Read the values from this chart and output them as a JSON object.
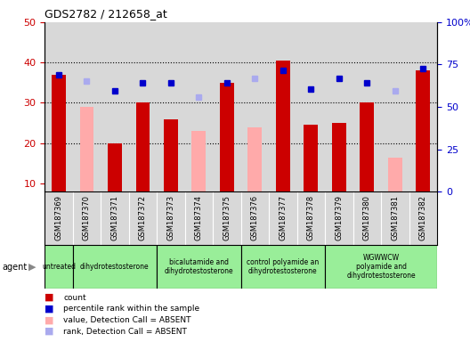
{
  "title": "GDS2782 / 212658_at",
  "samples": [
    "GSM187369",
    "GSM187370",
    "GSM187371",
    "GSM187372",
    "GSM187373",
    "GSM187374",
    "GSM187375",
    "GSM187376",
    "GSM187377",
    "GSM187378",
    "GSM187379",
    "GSM187380",
    "GSM187381",
    "GSM187382"
  ],
  "count_red": [
    37.0,
    null,
    20.0,
    30.0,
    26.0,
    null,
    35.0,
    null,
    40.5,
    24.5,
    25.0,
    30.0,
    null,
    38.0
  ],
  "value_pink": [
    null,
    29.0,
    null,
    null,
    null,
    23.0,
    null,
    24.0,
    null,
    null,
    null,
    null,
    16.5,
    null
  ],
  "rank_blue": [
    37.0,
    null,
    33.0,
    35.0,
    35.0,
    null,
    35.0,
    null,
    38.0,
    33.5,
    36.0,
    35.0,
    null,
    38.5
  ],
  "rank_lightblue": [
    null,
    35.5,
    null,
    null,
    null,
    31.5,
    null,
    36.0,
    null,
    null,
    null,
    null,
    33.0,
    null
  ],
  "agent_groups": [
    {
      "label": "untreated",
      "start": 0,
      "end": 1
    },
    {
      "label": "dihydrotestosterone",
      "start": 1,
      "end": 4
    },
    {
      "label": "bicalutamide and\ndihydrotestosterone",
      "start": 4,
      "end": 7
    },
    {
      "label": "control polyamide an\ndihydrotestosterone",
      "start": 7,
      "end": 10
    },
    {
      "label": "WGWWCW\npolyamide and\ndihydrotestosterone",
      "start": 10,
      "end": 14
    }
  ],
  "ylim_left": [
    8,
    50
  ],
  "ylim_right": [
    0,
    100
  ],
  "yticks_left": [
    10,
    20,
    30,
    40,
    50
  ],
  "yticks_right": [
    0,
    25,
    50,
    75,
    100
  ],
  "yticklabels_right": [
    "0",
    "25",
    "50",
    "75",
    "100%"
  ],
  "bg_color": "#d8d8d8",
  "agent_color": "#99ee99",
  "red_color": "#cc0000",
  "pink_color": "#ffaaaa",
  "blue_color": "#0000cc",
  "lightblue_color": "#aaaaee"
}
